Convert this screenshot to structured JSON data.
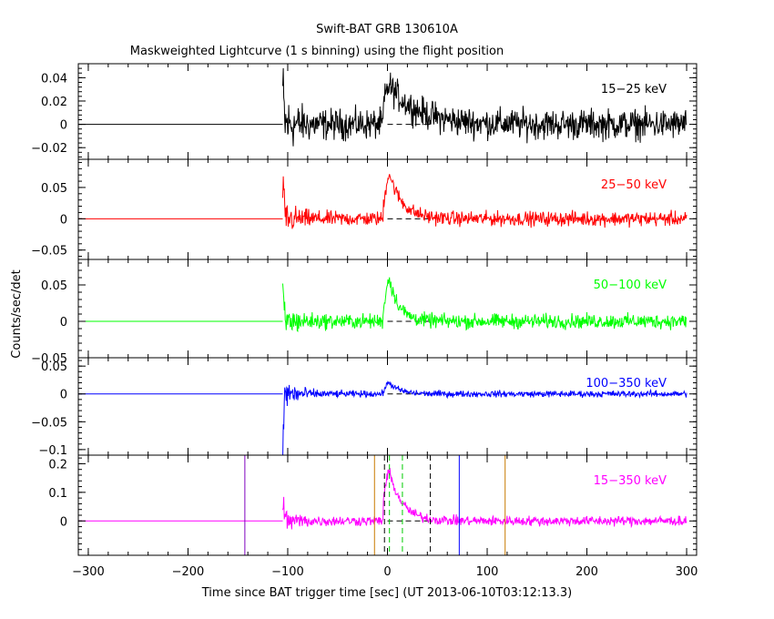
{
  "figure": {
    "title": "Swift-BAT GRB 130610A",
    "subtitle": "Maskweighted Lightcurve (1 s binning) using the flight position",
    "xlabel": "Time since BAT trigger time [sec] (UT 2013-06-10T03:12:13.3)",
    "ylabel": "Counts/sec/det"
  },
  "chart_data": {
    "type": "line",
    "xlim": [
      -310,
      310
    ],
    "x_ticks": [
      -300,
      -200,
      -100,
      0,
      100,
      200,
      300
    ],
    "x_tick_labels": [
      "−300",
      "−200",
      "−100",
      "0",
      "100",
      "200",
      "300"
    ],
    "data_start": -105,
    "data_end": 300,
    "bin_seconds": 1,
    "panels": [
      {
        "label": "15−25 keV",
        "color": "#000000",
        "ylim": [
          -0.03,
          0.052
        ],
        "y_ticks": [
          -0.02,
          0,
          0.02,
          0.04
        ],
        "y_tick_labels": [
          "−0.02",
          "0",
          "0.02",
          "0.04"
        ],
        "peak": 0.033,
        "rise": 5,
        "decay": 28,
        "noise_quiet": 0.009,
        "noise_start": 0.022,
        "onset_spike": 0.03
      },
      {
        "label": "25−50 keV",
        "color": "#ff0000",
        "ylim": [
          -0.065,
          0.095
        ],
        "y_ticks": [
          -0.05,
          0,
          0.05
        ],
        "y_tick_labels": [
          "−0.05",
          "0",
          "0.05"
        ],
        "peak": 0.072,
        "rise": 4,
        "decay": 13,
        "noise_quiet": 0.008,
        "noise_start": 0.025,
        "onset_spike": 0.06
      },
      {
        "label": "50−100 keV",
        "color": "#00ff00",
        "ylim": [
          -0.05,
          0.085
        ],
        "y_ticks": [
          -0.05,
          0,
          0.05
        ],
        "y_tick_labels": [
          "−0.05",
          "0",
          "0.05"
        ],
        "peak": 0.058,
        "rise": 4,
        "decay": 10,
        "noise_quiet": 0.007,
        "noise_start": 0.02,
        "onset_spike": 0.045
      },
      {
        "label": "100−350 keV",
        "color": "#0000ff",
        "ylim": [
          -0.11,
          0.065
        ],
        "y_ticks": [
          -0.1,
          -0.05,
          0,
          0.05
        ],
        "y_tick_labels": [
          "−0.1",
          "−0.05",
          "0",
          "0.05"
        ],
        "peak": 0.02,
        "rise": 4,
        "decay": 10,
        "noise_quiet": 0.004,
        "noise_start": 0.03,
        "onset_spike": -0.1
      },
      {
        "label": "15−350 keV",
        "color": "#ff00ff",
        "ylim": [
          -0.12,
          0.23
        ],
        "y_ticks": [
          0,
          0.1,
          0.2
        ],
        "y_tick_labels": [
          "0",
          "0.1",
          "0.2"
        ],
        "peak": 0.17,
        "rise": 5,
        "decay": 13,
        "noise_quiet": 0.012,
        "noise_start": 0.04,
        "onset_spike": 0.09
      }
    ],
    "time_markers": [
      {
        "x": -143,
        "color": "#7f00bf",
        "style": "solid"
      },
      {
        "x": -13,
        "color": "#c87a00",
        "style": "solid"
      },
      {
        "x": -3,
        "color": "#000000",
        "style": "dashed"
      },
      {
        "x": 2,
        "color": "#00cc00",
        "style": "dashed"
      },
      {
        "x": 15,
        "color": "#00cc00",
        "style": "dashed"
      },
      {
        "x": 43,
        "color": "#000000",
        "style": "dashed"
      },
      {
        "x": 72,
        "color": "#0000ff",
        "style": "solid"
      },
      {
        "x": 118,
        "color": "#c87a00",
        "style": "solid"
      }
    ],
    "t90_dashed_zero_span": [
      0,
      45
    ]
  }
}
